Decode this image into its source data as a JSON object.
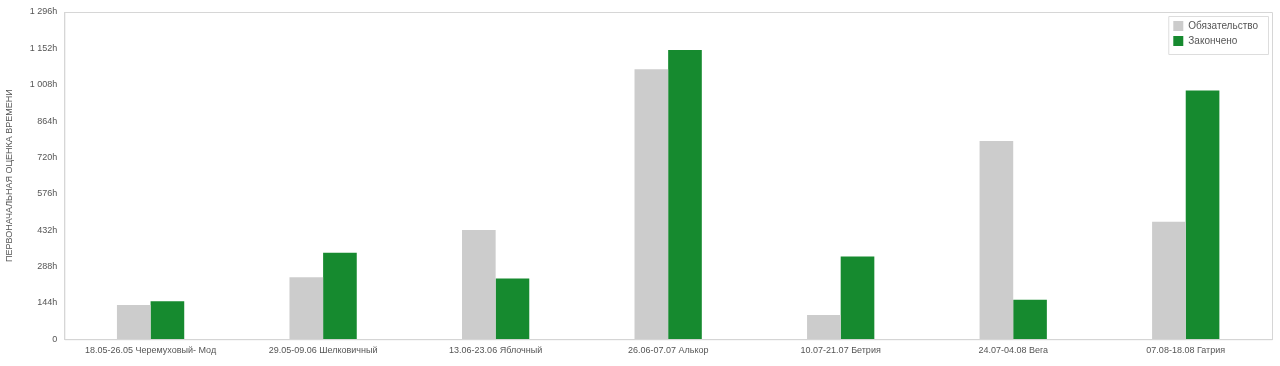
{
  "chart_data": {
    "type": "bar",
    "ylabel": "ПЕРВОНАЧАЛЬНАЯ ОЦЕНКА ВРЕМЕНИ",
    "categories": [
      "18.05-26.05 Черемуховый- Мод",
      "29.05-09.06 Шелковичный",
      "13.06-23.06 Яблочный",
      "26.06-07.07 Алькор",
      "10.07-21.07 Бетрия",
      "24.07-04.08 Вега",
      "07.08-18.08 Гатрия"
    ],
    "series": [
      {
        "name": "Обязательство",
        "color": "#cccccc",
        "values": [
          135,
          245,
          433,
          1069,
          96,
          785,
          465
        ]
      },
      {
        "name": "Закончено",
        "color": "#168a2f",
        "values": [
          150,
          342,
          240,
          1145,
          328,
          156,
          985
        ]
      }
    ],
    "ylim": [
      0,
      1296
    ],
    "yticks": [
      0,
      {
        "value": 144,
        "label": "144h"
      },
      {
        "value": 288,
        "label": "288h"
      },
      {
        "value": 432,
        "label": "432h"
      },
      {
        "value": 576,
        "label": "576h"
      },
      {
        "value": 720,
        "label": "720h"
      },
      {
        "value": 864,
        "label": "864h"
      },
      {
        "value": 1008,
        "label": "1 008h"
      },
      {
        "value": 1152,
        "label": "1 152h"
      },
      {
        "value": 1296,
        "label": "1 296h"
      }
    ],
    "grid": false,
    "legend": "top right"
  }
}
